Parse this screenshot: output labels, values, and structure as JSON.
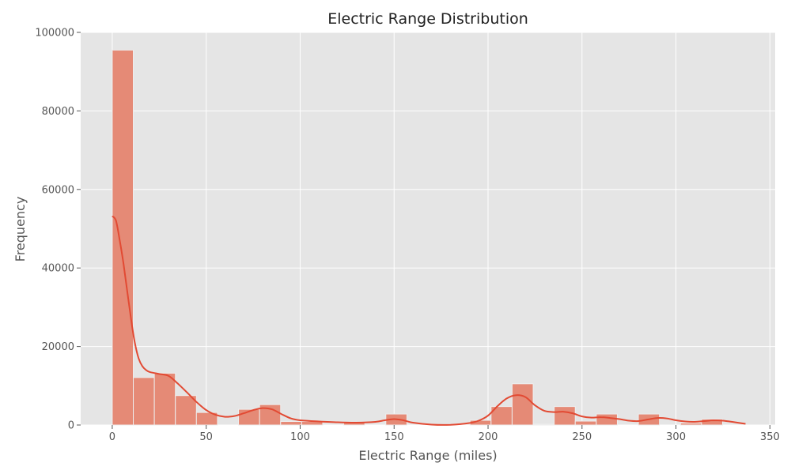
{
  "chart_data": {
    "type": "bar",
    "title": "Electric Range Distribution",
    "xlabel": "Electric Range (miles)",
    "ylabel": "Frequency",
    "xlim": [
      -16.8,
      352.8
    ],
    "ylim": [
      0,
      100000
    ],
    "x_ticks": [
      0,
      50,
      100,
      150,
      200,
      250,
      300,
      350
    ],
    "y_ticks": [
      0,
      20000,
      40000,
      60000,
      80000,
      100000
    ],
    "grid": true,
    "bin_width": 11.2,
    "bins": [
      {
        "start": 0.0,
        "count": 95500
      },
      {
        "start": 11.2,
        "count": 12100
      },
      {
        "start": 22.4,
        "count": 13200
      },
      {
        "start": 33.6,
        "count": 7500
      },
      {
        "start": 44.8,
        "count": 3200
      },
      {
        "start": 56.0,
        "count": 0
      },
      {
        "start": 67.2,
        "count": 4000
      },
      {
        "start": 78.4,
        "count": 5200
      },
      {
        "start": 89.6,
        "count": 900
      },
      {
        "start": 100.8,
        "count": 900
      },
      {
        "start": 112.0,
        "count": 0
      },
      {
        "start": 123.2,
        "count": 700
      },
      {
        "start": 134.4,
        "count": 0
      },
      {
        "start": 145.6,
        "count": 2800
      },
      {
        "start": 156.8,
        "count": 0
      },
      {
        "start": 168.0,
        "count": 0
      },
      {
        "start": 179.2,
        "count": 0
      },
      {
        "start": 190.4,
        "count": 1200
      },
      {
        "start": 201.6,
        "count": 4700
      },
      {
        "start": 212.8,
        "count": 10500
      },
      {
        "start": 224.0,
        "count": 200
      },
      {
        "start": 235.2,
        "count": 4700
      },
      {
        "start": 246.4,
        "count": 1000
      },
      {
        "start": 257.6,
        "count": 2800
      },
      {
        "start": 268.8,
        "count": 0
      },
      {
        "start": 280.0,
        "count": 2800
      },
      {
        "start": 291.2,
        "count": 0
      },
      {
        "start": 302.4,
        "count": 500
      },
      {
        "start": 313.6,
        "count": 1500
      }
    ],
    "kde": {
      "x": [
        0,
        2,
        4,
        6,
        8,
        10,
        12,
        14,
        16,
        18,
        20,
        25,
        30,
        35,
        40,
        45,
        50,
        55,
        60,
        65,
        70,
        75,
        80,
        85,
        90,
        95,
        100,
        110,
        120,
        130,
        140,
        145,
        150,
        155,
        160,
        170,
        180,
        190,
        195,
        200,
        205,
        210,
        215,
        220,
        225,
        230,
        235,
        240,
        245,
        250,
        255,
        260,
        265,
        270,
        275,
        280,
        285,
        290,
        295,
        300,
        305,
        310,
        315,
        320,
        325,
        330,
        337
      ],
      "y": [
        53200,
        52000,
        47000,
        41000,
        34000,
        27000,
        21000,
        17000,
        15000,
        14000,
        13500,
        13000,
        12500,
        10500,
        8200,
        5800,
        3800,
        2600,
        2100,
        2300,
        3000,
        3800,
        4300,
        4000,
        2800,
        1700,
        1200,
        900,
        700,
        600,
        800,
        1200,
        1500,
        1200,
        600,
        100,
        50,
        500,
        1100,
        2400,
        4800,
        6800,
        7600,
        7100,
        5000,
        3600,
        3300,
        3400,
        3000,
        2200,
        1900,
        2000,
        1800,
        1500,
        1100,
        1000,
        1400,
        1800,
        1700,
        1200,
        900,
        800,
        1000,
        1200,
        1100,
        800,
        300
      ]
    },
    "colors": {
      "background": "#e5e5e5",
      "grid": "#ffffff",
      "bar_fill": "#e58a76",
      "bar_edge": "#eeeeee",
      "kde_line": "#e24a33"
    }
  }
}
